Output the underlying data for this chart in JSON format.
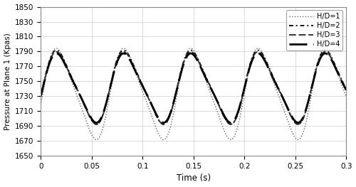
{
  "title": "",
  "xlabel": "Time (s)",
  "ylabel": "Pressure at Plane 1 (Kpas)",
  "xlim": [
    0,
    0.3
  ],
  "ylim": [
    1650,
    1850
  ],
  "yticks": [
    1650,
    1670,
    1690,
    1710,
    1730,
    1750,
    1770,
    1790,
    1810,
    1830,
    1850
  ],
  "xticks": [
    0,
    0.05,
    0.1,
    0.15,
    0.2,
    0.25,
    0.3
  ],
  "background_color": "#ffffff",
  "grid_color": "#cccccc",
  "series": [
    {
      "label": "H/D=1",
      "color": "#666666",
      "linewidth": 1.0,
      "mean": 1733,
      "amp": 58,
      "amp2": 0.18,
      "freq": 15.15,
      "phase": 0.0
    },
    {
      "label": "H/D=2",
      "color": "#111111",
      "linewidth": 1.4,
      "mean": 1742,
      "amp": 47,
      "amp2": 0.18,
      "freq": 15.15,
      "phase": 0.0
    },
    {
      "label": "H/D=3",
      "color": "#333333",
      "linewidth": 1.4,
      "mean": 1741,
      "amp": 46,
      "amp2": 0.18,
      "freq": 15.15,
      "phase": 0.0
    },
    {
      "label": "H/D=4",
      "color": "#000000",
      "linewidth": 2.0,
      "mean": 1741,
      "amp": 44,
      "amp2": 0.18,
      "freq": 15.15,
      "phase": 0.0
    }
  ]
}
